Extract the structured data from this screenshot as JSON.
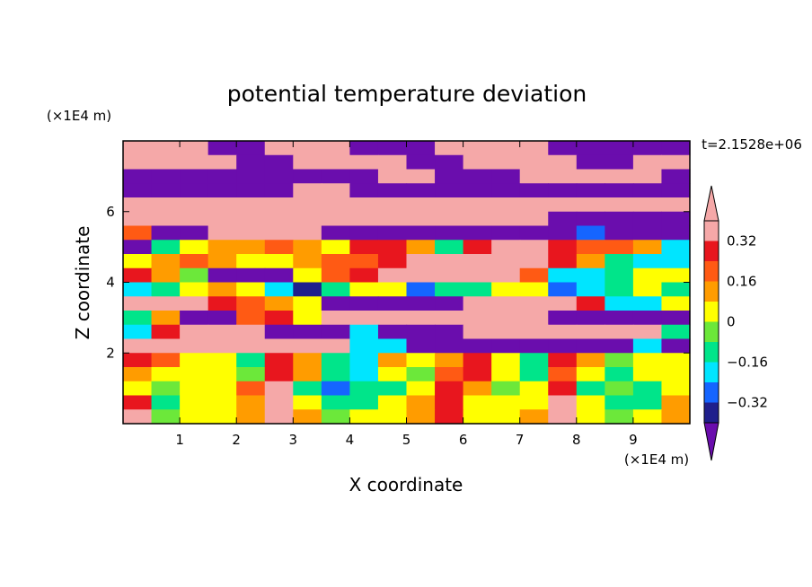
{
  "chart_data": {
    "type": "heatmap",
    "title": "potential temperature deviation",
    "xlabel": "X coordinate",
    "ylabel": "Z coordinate",
    "x_unit": "(×1E4 m)",
    "y_unit": "(×1E4 m)",
    "time_label": "t=2.1528e+06",
    "xlim": [
      0,
      10
    ],
    "ylim": [
      0,
      8
    ],
    "x_ticks": [
      "1",
      "2",
      "3",
      "4",
      "5",
      "6",
      "7",
      "8",
      "9"
    ],
    "y_ticks": [
      "2",
      "4",
      "6"
    ],
    "colorbar": {
      "levels": [
        -0.4,
        -0.32,
        -0.24,
        -0.16,
        -0.08,
        0,
        0.08,
        0.16,
        0.24,
        0.32,
        0.4
      ],
      "tick_labels": [
        "0.32",
        "0.16",
        "0",
        "−0.16",
        "−0.32"
      ],
      "tick_values": [
        0.32,
        0.16,
        0,
        -0.16,
        -0.32
      ],
      "colors": [
        "#6a0dad",
        "#1f1f8c",
        "#1565ff",
        "#00e5ff",
        "#00e58a",
        "#6ce83a",
        "#ffff00",
        "#ff9c00",
        "#ff5a14",
        "#e8161e",
        "#f5a8a8"
      ],
      "extend": "both"
    },
    "field_rows": [
      {
        "z": 7.6,
        "values": [
          0.45,
          0.45,
          0.45,
          -0.45,
          -0.45,
          0.45,
          0.45,
          0.45,
          -0.45,
          -0.45,
          -0.45,
          0.45,
          0.45,
          0.45,
          0.45,
          -0.45,
          -0.45,
          -0.45,
          -0.45,
          -0.45
        ]
      },
      {
        "z": 7.2,
        "values": [
          0.45,
          0.45,
          0.45,
          0.45,
          -0.45,
          -0.45,
          0.45,
          0.45,
          0.45,
          0.45,
          -0.45,
          -0.45,
          0.45,
          0.45,
          0.45,
          0.45,
          -0.45,
          -0.45,
          0.45,
          0.45
        ]
      },
      {
        "z": 6.8,
        "values": [
          -0.45,
          -0.45,
          -0.45,
          -0.45,
          -0.45,
          -0.45,
          -0.45,
          -0.45,
          -0.45,
          0.45,
          0.45,
          -0.45,
          -0.45,
          -0.45,
          0.45,
          0.45,
          0.45,
          0.45,
          0.45,
          -0.45
        ]
      },
      {
        "z": 6.4,
        "values": [
          -0.45,
          -0.45,
          -0.45,
          -0.45,
          -0.45,
          -0.45,
          0.45,
          0.45,
          -0.45,
          -0.45,
          -0.45,
          -0.45,
          -0.45,
          -0.45,
          -0.45,
          -0.45,
          -0.45,
          -0.45,
          -0.45,
          -0.45
        ]
      },
      {
        "z": 6.0,
        "values": [
          0.45,
          0.45,
          0.45,
          0.45,
          0.45,
          0.45,
          0.45,
          0.45,
          0.45,
          0.45,
          0.45,
          0.45,
          0.45,
          0.45,
          0.45,
          0.45,
          0.45,
          0.45,
          0.45,
          0.45
        ]
      },
      {
        "z": 5.6,
        "values": [
          0.45,
          0.45,
          0.45,
          0.45,
          0.45,
          0.45,
          0.45,
          0.45,
          0.45,
          0.45,
          0.45,
          0.45,
          0.45,
          0.45,
          0.45,
          -0.45,
          -0.45,
          -0.45,
          -0.45,
          -0.45
        ]
      },
      {
        "z": 5.2,
        "values": [
          0.2,
          -0.45,
          -0.45,
          0.35,
          0.45,
          0.45,
          0.45,
          -0.45,
          -0.45,
          -0.45,
          -0.45,
          -0.45,
          -0.45,
          -0.45,
          -0.45,
          -0.45,
          -0.3,
          -0.45,
          -0.45,
          -0.45
        ]
      },
      {
        "z": 4.8,
        "values": [
          -0.45,
          -0.1,
          0.05,
          0.12,
          0.1,
          0.2,
          0.1,
          0.05,
          0.3,
          0.3,
          0.1,
          -0.1,
          0.3,
          0.4,
          0.35,
          0.3,
          0.2,
          0.2,
          0.1,
          -0.2
        ]
      },
      {
        "z": 4.4,
        "values": [
          0.0,
          0.1,
          0.2,
          0.12,
          0.05,
          0.0,
          0.1,
          0.2,
          0.2,
          0.3,
          0.35,
          0.45,
          0.45,
          0.42,
          0.35,
          0.25,
          0.1,
          -0.1,
          -0.2,
          -0.2
        ]
      },
      {
        "z": 4.0,
        "values": [
          0.3,
          0.15,
          -0.05,
          -0.45,
          -0.45,
          -0.45,
          0.0,
          0.2,
          0.3,
          0.35,
          0.45,
          0.45,
          0.45,
          0.35,
          0.2,
          -0.2,
          -0.2,
          -0.1,
          0.0,
          0.0
        ]
      },
      {
        "z": 3.6,
        "values": [
          -0.2,
          -0.1,
          0.0,
          0.1,
          0.0,
          -0.2,
          -0.35,
          -0.1,
          0.05,
          0.0,
          -0.3,
          -0.1,
          -0.1,
          0.0,
          0.05,
          -0.25,
          -0.2,
          -0.1,
          0.0,
          -0.1
        ]
      },
      {
        "z": 3.2,
        "values": [
          0.45,
          0.45,
          0.4,
          0.3,
          0.2,
          0.1,
          0.0,
          -0.45,
          -0.45,
          -0.45,
          -0.45,
          -0.45,
          0.45,
          0.45,
          0.45,
          0.45,
          0.3,
          -0.2,
          -0.2,
          0.0
        ]
      },
      {
        "z": 2.8,
        "values": [
          -0.1,
          0.1,
          -0.45,
          -0.45,
          0.2,
          0.3,
          0.0,
          0.45,
          0.45,
          0.45,
          0.45,
          0.45,
          0.45,
          0.45,
          0.45,
          -0.45,
          -0.45,
          -0.45,
          -0.45,
          -0.45
        ]
      },
      {
        "z": 2.4,
        "values": [
          -0.2,
          0.3,
          0.45,
          0.45,
          0.45,
          -0.45,
          -0.45,
          -0.45,
          -0.2,
          -0.45,
          -0.45,
          -0.45,
          0.45,
          0.45,
          0.45,
          0.45,
          0.45,
          0.45,
          0.45,
          -0.1
        ]
      },
      {
        "z": 2.0,
        "values": [
          0.45,
          0.45,
          0.45,
          0.45,
          0.45,
          0.45,
          0.45,
          0.45,
          -0.2,
          -0.2,
          -0.45,
          -0.45,
          -0.45,
          -0.45,
          -0.45,
          -0.45,
          -0.45,
          -0.45,
          -0.2,
          -0.45
        ]
      },
      {
        "z": 1.6,
        "values": [
          0.3,
          0.2,
          0.05,
          0.0,
          -0.1,
          0.25,
          0.1,
          -0.1,
          -0.2,
          0.1,
          0.0,
          0.15,
          0.25,
          0.0,
          -0.1,
          0.3,
          0.1,
          -0.05,
          0.0,
          0.0
        ]
      },
      {
        "z": 1.2,
        "values": [
          0.1,
          0.0,
          0.05,
          0.02,
          -0.05,
          0.3,
          0.1,
          -0.1,
          -0.2,
          0.0,
          -0.05,
          0.2,
          0.3,
          0.0,
          -0.1,
          0.2,
          0.0,
          -0.1,
          0.0,
          0.05
        ]
      },
      {
        "z": 0.8,
        "values": [
          0.05,
          -0.05,
          0.0,
          0.05,
          0.2,
          0.4,
          -0.1,
          -0.25,
          -0.15,
          -0.1,
          0.05,
          0.25,
          0.1,
          -0.05,
          0.05,
          0.3,
          -0.1,
          -0.05,
          -0.1,
          0.0
        ]
      },
      {
        "z": 0.4,
        "values": [
          0.25,
          -0.1,
          0.0,
          0.05,
          0.1,
          0.45,
          0.05,
          -0.1,
          -0.1,
          0.0,
          0.1,
          0.3,
          0.05,
          0.0,
          0.05,
          0.4,
          0.0,
          -0.1,
          -0.1,
          0.1
        ]
      },
      {
        "z": 0.0,
        "values": [
          0.4,
          -0.05,
          0.05,
          0.05,
          0.1,
          0.45,
          0.1,
          -0.05,
          0.05,
          0.05,
          0.15,
          0.3,
          0.05,
          0.0,
          0.1,
          0.45,
          0.0,
          -0.05,
          0.0,
          0.1
        ]
      }
    ]
  }
}
